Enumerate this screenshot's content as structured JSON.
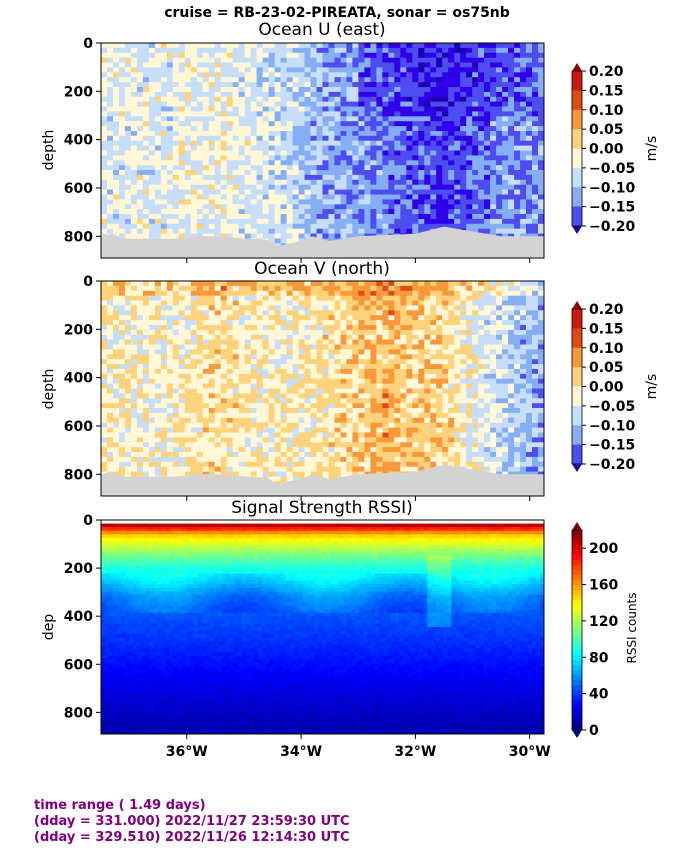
{
  "suptitle": "cruise = RB-23-02-PIREATA,  sonar = os75nb",
  "footer": {
    "line1": "time range ( 1.49 days)",
    "line2": "(dday = 331.000) 2022/11/27 23:59:30 UTC",
    "line3": "(dday = 329.510) 2022/11/26 12:14:30 UTC"
  },
  "colors": {
    "bottom_mask": "#d3d3d3",
    "footer_text": "#800080"
  },
  "chart_data": [
    {
      "type": "heatmap",
      "title": "Ocean U (east)",
      "ylabel": "depth",
      "ylim": [
        890,
        0
      ],
      "xlim": [
        -37.5,
        -29.75
      ],
      "yticks": [
        0,
        200,
        400,
        600,
        800
      ],
      "xticks": [],
      "colorbar": {
        "label": "m/s",
        "colormap": "blue-white-red",
        "ticks": [
          "0.20",
          "0.15",
          "0.10",
          "0.05",
          "0.00",
          "−0.05",
          "−0.10",
          "−0.15",
          "−0.20"
        ],
        "range": [
          -0.2,
          0.2
        ]
      },
      "x": [
        -37.5,
        -36.5,
        -35.5,
        -34.5,
        -33.5,
        -32.5,
        -31.5,
        -30.5,
        -29.75
      ],
      "regions_velocity": [
        0.0,
        0.0,
        0.01,
        -0.01,
        -0.07,
        -0.1,
        -0.15,
        -0.09,
        -0.08
      ]
    },
    {
      "type": "heatmap",
      "title": "Ocean V (north)",
      "ylabel": "depth",
      "ylim": [
        890,
        0
      ],
      "xlim": [
        -37.5,
        -29.75
      ],
      "yticks": [
        0,
        200,
        400,
        600,
        800
      ],
      "xticks": [],
      "colorbar": {
        "label": "m/s",
        "colormap": "blue-white-red",
        "ticks": [
          "0.20",
          "0.15",
          "0.10",
          "0.05",
          "0.00",
          "−0.05",
          "−0.10",
          "−0.15",
          "−0.20"
        ],
        "range": [
          -0.2,
          0.2
        ]
      },
      "x": [
        -37.5,
        -36.5,
        -35.5,
        -34.5,
        -33.5,
        -32.5,
        -31.5,
        -30.5,
        -29.75
      ],
      "regions_velocity": [
        0.04,
        0.02,
        0.06,
        0.03,
        0.05,
        0.1,
        0.06,
        -0.02,
        -0.08
      ]
    },
    {
      "type": "heatmap",
      "title": "Signal Strength RSSI)",
      "ylabel": "dep",
      "ylim": [
        890,
        0
      ],
      "xlim": [
        -37.5,
        -29.75
      ],
      "yticks": [
        0,
        200,
        400,
        600,
        800
      ],
      "xticks": [
        "36°W",
        "34°W",
        "32°W",
        "30°W"
      ],
      "xtick_values": [
        -36,
        -34,
        -32,
        -30
      ],
      "colorbar": {
        "label": "RSSI counts",
        "colormap": "jet",
        "ticks": [
          "200",
          "160",
          "120",
          "80",
          "40",
          "0"
        ],
        "range": [
          0,
          220
        ]
      },
      "profile_depth": [
        20,
        60,
        120,
        180,
        250,
        320,
        400,
        500,
        600,
        700,
        800,
        890
      ],
      "profile_rssi": [
        210,
        150,
        120,
        95,
        75,
        55,
        45,
        38,
        30,
        22,
        15,
        10
      ]
    }
  ]
}
